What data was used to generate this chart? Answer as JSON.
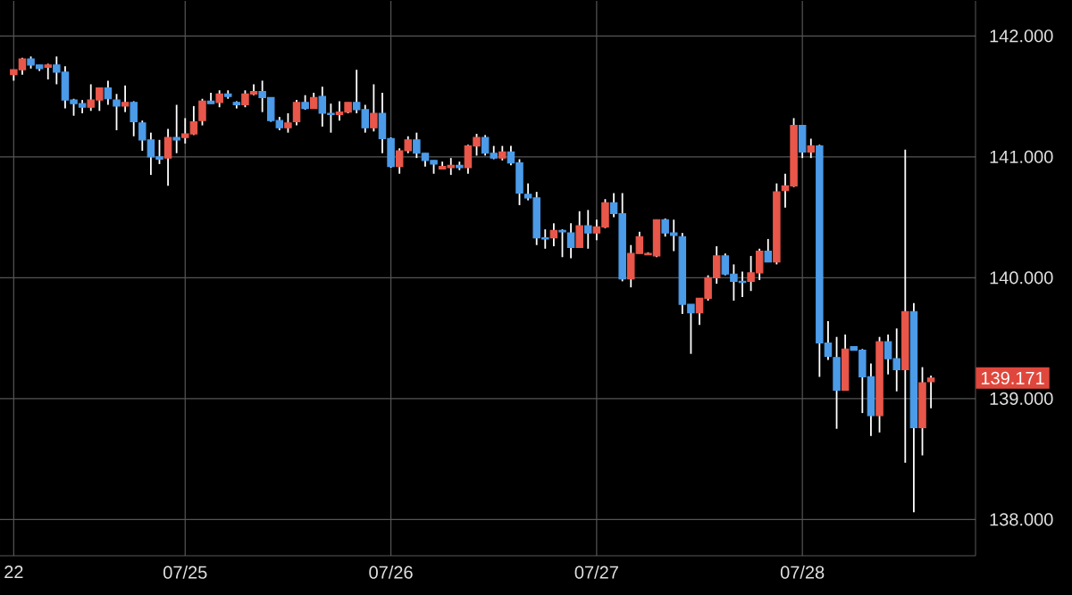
{
  "chart_data": {
    "type": "candlestick",
    "categories": [
      "22",
      null,
      null,
      null,
      null,
      null,
      null,
      null,
      null,
      null,
      null,
      null,
      null,
      null,
      null,
      null,
      null,
      null,
      null,
      null,
      "07/25",
      null,
      null,
      null,
      null,
      null,
      null,
      null,
      null,
      null,
      null,
      null,
      null,
      null,
      null,
      null,
      null,
      null,
      null,
      null,
      null,
      null,
      null,
      null,
      "07/26",
      null,
      null,
      null,
      null,
      null,
      null,
      null,
      null,
      null,
      null,
      null,
      null,
      null,
      null,
      null,
      null,
      null,
      null,
      null,
      null,
      null,
      null,
      null,
      "07/27",
      null,
      null,
      null,
      null,
      null,
      null,
      null,
      null,
      null,
      null,
      null,
      null,
      null,
      null,
      null,
      null,
      null,
      null,
      null,
      null,
      null,
      null,
      null,
      "07/28",
      null,
      null,
      null,
      null,
      null,
      null,
      null,
      null,
      null,
      null,
      null,
      null,
      null,
      null,
      null
    ],
    "ohlc": [
      [
        141.68,
        141.72,
        141.63,
        141.72
      ],
      [
        141.72,
        141.82,
        141.68,
        141.81
      ],
      [
        141.81,
        141.83,
        141.73,
        141.76
      ],
      [
        141.76,
        141.76,
        141.71,
        141.73
      ],
      [
        141.74,
        141.77,
        141.64,
        141.76
      ],
      [
        141.76,
        141.83,
        141.6,
        141.7
      ],
      [
        141.7,
        141.75,
        141.4,
        141.47
      ],
      [
        141.47,
        141.48,
        141.34,
        141.44
      ],
      [
        141.44,
        141.47,
        141.36,
        141.41
      ],
      [
        141.41,
        141.6,
        141.38,
        141.47
      ],
      [
        141.47,
        141.57,
        141.38,
        141.57
      ],
      [
        141.57,
        141.63,
        141.43,
        141.48
      ],
      [
        141.47,
        141.52,
        141.22,
        141.42
      ],
      [
        141.42,
        141.59,
        141.37,
        141.45
      ],
      [
        141.45,
        141.46,
        141.17,
        141.29
      ],
      [
        141.28,
        141.3,
        141.05,
        141.14
      ],
      [
        141.14,
        141.2,
        140.85,
        141.0
      ],
      [
        141.0,
        141.14,
        140.94,
        140.98
      ],
      [
        140.99,
        141.23,
        140.76,
        141.16
      ],
      [
        141.16,
        141.43,
        141.03,
        141.14
      ],
      [
        141.16,
        141.32,
        141.11,
        141.19
      ],
      [
        141.19,
        141.42,
        141.18,
        141.29
      ],
      [
        141.3,
        141.48,
        141.26,
        141.46
      ],
      [
        141.46,
        141.53,
        141.44,
        141.44
      ],
      [
        141.45,
        141.55,
        141.41,
        141.52
      ],
      [
        141.52,
        141.55,
        141.48,
        141.5
      ],
      [
        141.45,
        141.46,
        141.4,
        141.43
      ],
      [
        141.43,
        141.55,
        141.41,
        141.52
      ],
      [
        141.52,
        141.6,
        141.51,
        141.54
      ],
      [
        141.54,
        141.63,
        141.37,
        141.49
      ],
      [
        141.49,
        141.49,
        141.29,
        141.3
      ],
      [
        141.3,
        141.33,
        141.22,
        141.24
      ],
      [
        141.24,
        141.36,
        141.2,
        141.28
      ],
      [
        141.29,
        141.47,
        141.26,
        141.45
      ],
      [
        141.45,
        141.51,
        141.39,
        141.4
      ],
      [
        141.4,
        141.53,
        141.4,
        141.49
      ],
      [
        141.5,
        141.58,
        141.25,
        141.36
      ],
      [
        141.36,
        141.44,
        141.2,
        141.35
      ],
      [
        141.35,
        141.46,
        141.3,
        141.37
      ],
      [
        141.37,
        141.45,
        141.36,
        141.45
      ],
      [
        141.45,
        141.72,
        141.36,
        141.39
      ],
      [
        141.39,
        141.43,
        141.2,
        141.24
      ],
      [
        141.24,
        141.6,
        141.21,
        141.36
      ],
      [
        141.36,
        141.53,
        141.03,
        141.15
      ],
      [
        141.15,
        141.16,
        140.91,
        140.92
      ],
      [
        140.92,
        141.07,
        140.86,
        141.05
      ],
      [
        141.05,
        141.17,
        141.03,
        141.14
      ],
      [
        141.14,
        141.2,
        140.99,
        141.03
      ],
      [
        141.03,
        141.03,
        140.92,
        140.97
      ],
      [
        140.97,
        140.97,
        140.86,
        140.94
      ],
      [
        140.9,
        140.96,
        140.9,
        140.92
      ],
      [
        140.91,
        140.99,
        140.85,
        140.93
      ],
      [
        140.93,
        140.96,
        140.89,
        140.91
      ],
      [
        140.91,
        141.1,
        140.86,
        141.09
      ],
      [
        141.09,
        141.19,
        141.01,
        141.16
      ],
      [
        141.16,
        141.18,
        141.01,
        141.03
      ],
      [
        141.03,
        141.09,
        140.98,
        140.99
      ],
      [
        140.99,
        141.09,
        140.97,
        141.04
      ],
      [
        141.04,
        141.09,
        140.93,
        140.95
      ],
      [
        140.95,
        140.98,
        140.6,
        140.7
      ],
      [
        140.69,
        140.78,
        140.64,
        140.66
      ],
      [
        140.66,
        140.71,
        140.27,
        140.33
      ],
      [
        140.33,
        140.4,
        140.24,
        140.32
      ],
      [
        140.33,
        140.45,
        140.26,
        140.39
      ],
      [
        140.39,
        140.4,
        140.17,
        140.38
      ],
      [
        140.37,
        140.45,
        140.16,
        140.25
      ],
      [
        140.25,
        140.55,
        140.25,
        140.43
      ],
      [
        140.43,
        140.56,
        140.24,
        140.37
      ],
      [
        140.37,
        140.48,
        140.31,
        140.42
      ],
      [
        140.42,
        140.65,
        140.41,
        140.62
      ],
      [
        140.62,
        140.7,
        140.5,
        140.53
      ],
      [
        140.53,
        140.7,
        139.97,
        139.99
      ],
      [
        139.99,
        140.27,
        139.92,
        140.2
      ],
      [
        140.2,
        140.38,
        140.2,
        140.34
      ],
      [
        140.19,
        140.21,
        140.19,
        140.2
      ],
      [
        140.18,
        140.48,
        140.17,
        140.48
      ],
      [
        140.48,
        140.49,
        140.34,
        140.37
      ],
      [
        140.37,
        140.48,
        140.22,
        140.35
      ],
      [
        140.34,
        140.37,
        139.7,
        139.78
      ],
      [
        139.78,
        139.78,
        139.37,
        139.71
      ],
      [
        139.71,
        139.83,
        139.61,
        139.83
      ],
      [
        139.83,
        140.02,
        139.81,
        140.0
      ],
      [
        140.0,
        140.26,
        139.95,
        140.18
      ],
      [
        140.18,
        140.2,
        140.02,
        140.03
      ],
      [
        140.03,
        140.11,
        139.81,
        139.97
      ],
      [
        139.97,
        140.05,
        139.84,
        139.96
      ],
      [
        139.97,
        140.18,
        139.89,
        140.04
      ],
      [
        140.04,
        140.24,
        139.98,
        140.22
      ],
      [
        140.22,
        140.32,
        140.13,
        140.13
      ],
      [
        140.13,
        140.78,
        140.11,
        140.71
      ],
      [
        140.72,
        140.86,
        140.58,
        140.76
      ],
      [
        140.76,
        141.32,
        140.75,
        141.26
      ],
      [
        141.26,
        141.26,
        140.99,
        141.04
      ],
      [
        141.04,
        141.15,
        140.99,
        141.09
      ],
      [
        141.09,
        141.1,
        139.18,
        139.46
      ],
      [
        139.46,
        139.64,
        139.32,
        139.35
      ],
      [
        139.34,
        139.51,
        138.75,
        139.07
      ],
      [
        139.07,
        139.53,
        139.07,
        139.41
      ],
      [
        139.43,
        139.43,
        139.4,
        139.4
      ],
      [
        139.4,
        139.41,
        138.88,
        139.18
      ],
      [
        139.18,
        139.29,
        138.69,
        138.86
      ],
      [
        138.86,
        139.51,
        138.72,
        139.47
      ],
      [
        139.47,
        139.53,
        139.2,
        139.33
      ],
      [
        139.33,
        139.58,
        139.06,
        139.24
      ],
      [
        139.24,
        141.06,
        138.47,
        139.72
      ],
      [
        139.72,
        139.79,
        138.06,
        138.76
      ],
      [
        138.76,
        139.26,
        138.53,
        139.13
      ],
      [
        139.14,
        139.19,
        138.92,
        139.17
      ]
    ],
    "colors": [
      "#e8574a",
      "#e8574a",
      "#4b9be9",
      "#4b9be9",
      "#e8574a",
      "#4b9be9",
      "#4b9be9",
      "#4b9be9",
      "#4b9be9",
      "#e8574a",
      "#e8574a",
      "#4b9be9",
      "#4b9be9",
      "#e8574a",
      "#4b9be9",
      "#4b9be9",
      "#4b9be9",
      "#4b9be9",
      "#e8574a",
      "#4b9be9",
      "#e8574a",
      "#e8574a",
      "#e8574a",
      "#4b9be9",
      "#e8574a",
      "#4b9be9",
      "#4b9be9",
      "#e8574a",
      "#e8574a",
      "#4b9be9",
      "#4b9be9",
      "#4b9be9",
      "#e8574a",
      "#e8574a",
      "#4b9be9",
      "#e8574a",
      "#4b9be9",
      "#4b9be9",
      "#e8574a",
      "#e8574a",
      "#4b9be9",
      "#4b9be9",
      "#e8574a",
      "#4b9be9",
      "#4b9be9",
      "#e8574a",
      "#e8574a",
      "#4b9be9",
      "#4b9be9",
      "#4b9be9",
      "#e8574a",
      "#e8574a",
      "#4b9be9",
      "#e8574a",
      "#e8574a",
      "#4b9be9",
      "#4b9be9",
      "#e8574a",
      "#4b9be9",
      "#4b9be9",
      "#4b9be9",
      "#4b9be9",
      "#4b9be9",
      "#e8574a",
      "#4b9be9",
      "#4b9be9",
      "#e8574a",
      "#4b9be9",
      "#e8574a",
      "#e8574a",
      "#4b9be9",
      "#4b9be9",
      "#e8574a",
      "#e8574a",
      "#e8574a",
      "#e8574a",
      "#4b9be9",
      "#4b9be9",
      "#4b9be9",
      "#4b9be9",
      "#e8574a",
      "#e8574a",
      "#e8574a",
      "#4b9be9",
      "#4b9be9",
      "#4b9be9",
      "#e8574a",
      "#e8574a",
      "#4b9be9",
      "#e8574a",
      "#e8574a",
      "#e8574a",
      "#4b9be9",
      "#e8574a",
      "#4b9be9",
      "#4b9be9",
      "#4b9be9",
      "#e8574a",
      "#4b9be9",
      "#4b9be9",
      "#4b9be9",
      "#e8574a",
      "#4b9be9",
      "#4b9be9",
      "#e8574a",
      "#4b9be9",
      "#e8574a",
      "#e8574a"
    ],
    "ylim": [
      137.7,
      142.29
    ],
    "yticks": [
      {
        "value": 138,
        "label": "138.000"
      },
      {
        "value": 139,
        "label": "139.000"
      },
      {
        "value": 140,
        "label": "140.000"
      },
      {
        "value": 141,
        "label": "141.000"
      },
      {
        "value": 142,
        "label": "142.000"
      }
    ],
    "grid": true,
    "annotations": [
      "139.171"
    ]
  }
}
